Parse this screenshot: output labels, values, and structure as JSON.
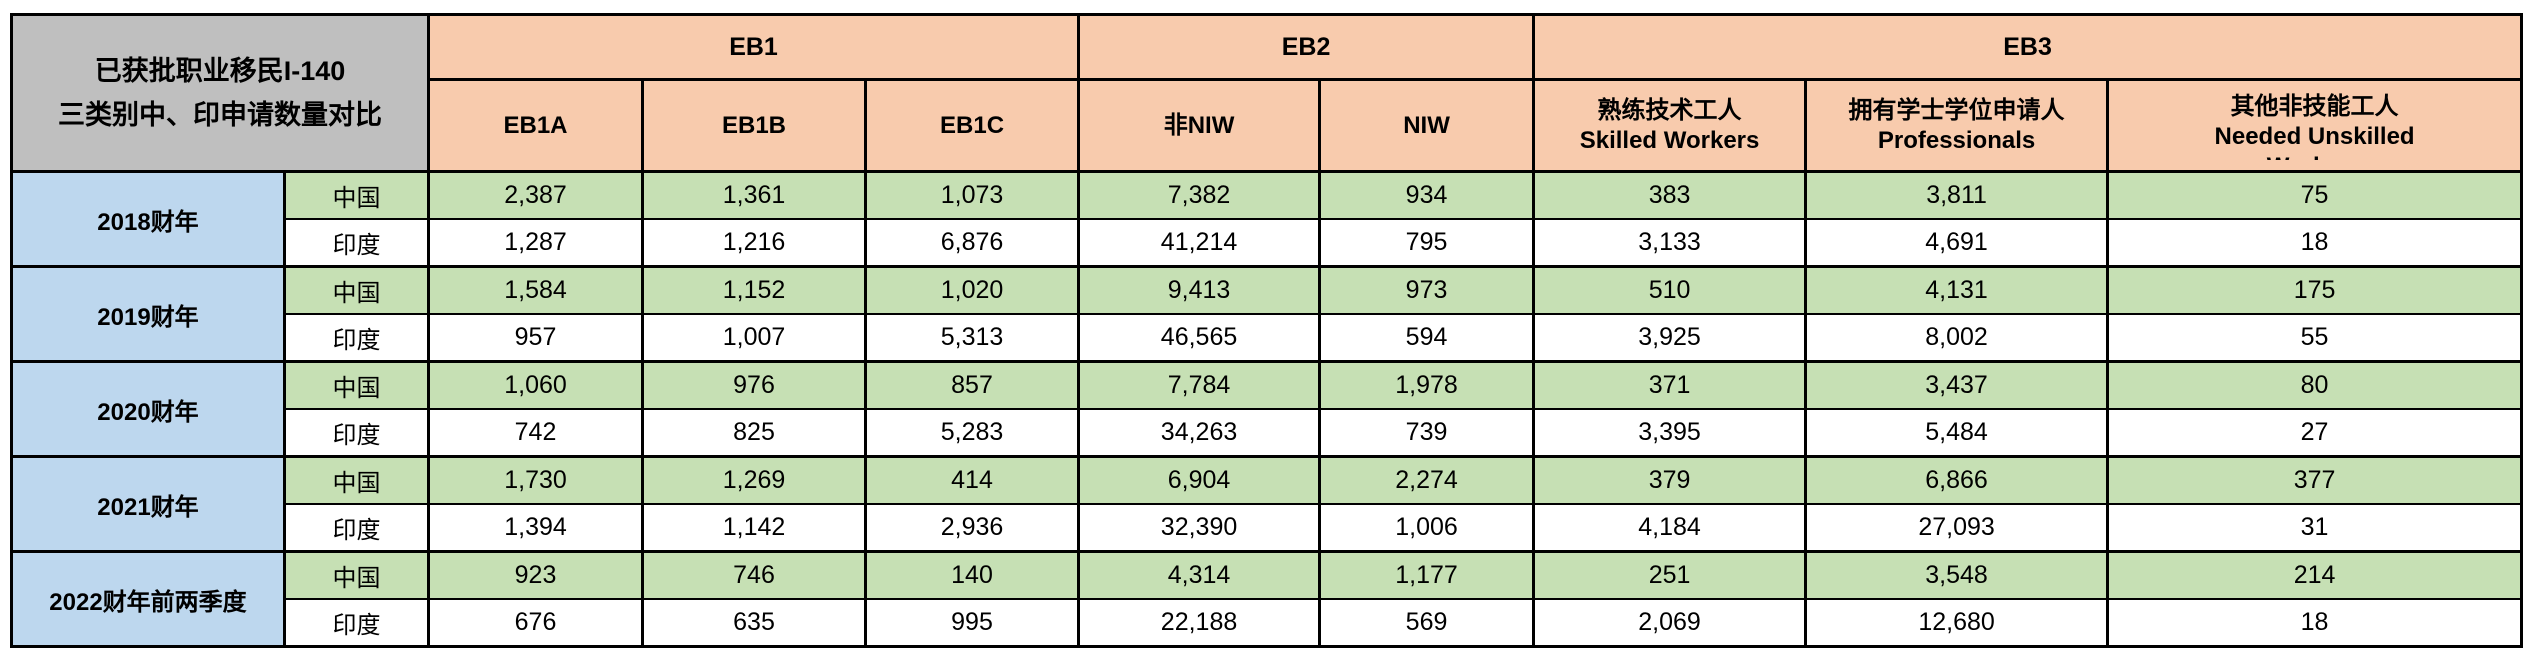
{
  "colors": {
    "header_bg": "#F8CBAD",
    "corner_bg": "#BFBFBF",
    "year_bg": "#BDD7EE",
    "china_bg": "#C6E0B4",
    "india_bg": "#FFFFFF",
    "border": "#000000"
  },
  "table": {
    "title_line1": "已获批职业移民I-140",
    "title_line2": "三类别中、印申请数量对比",
    "groups": [
      {
        "label": "EB1",
        "span": 3
      },
      {
        "label": "EB2",
        "span": 2
      },
      {
        "label": "EB3",
        "span": 3
      }
    ],
    "columns": [
      {
        "id": "eb1a",
        "lines": [
          "EB1A"
        ]
      },
      {
        "id": "eb1b",
        "lines": [
          "EB1B"
        ]
      },
      {
        "id": "eb1c",
        "lines": [
          "EB1C"
        ]
      },
      {
        "id": "non-niw",
        "lines": [
          "非NIW"
        ]
      },
      {
        "id": "niw",
        "lines": [
          "NIW"
        ]
      },
      {
        "id": "skilled-workers",
        "lines": [
          "熟练技术工人",
          "Skilled Workers"
        ]
      },
      {
        "id": "professionals",
        "lines": [
          "拥有学士学位申请人",
          "Professionals"
        ]
      },
      {
        "id": "unskilled-workers",
        "lines": [
          "其他非技能工人",
          "Needed Unskilled",
          "Workers"
        ]
      }
    ],
    "year_groups": [
      {
        "year": "2018财年",
        "rows": [
          {
            "country": "中国",
            "values": [
              "2,387",
              "1,361",
              "1,073",
              "7,382",
              "934",
              "383",
              "3,811",
              "75"
            ]
          },
          {
            "country": "印度",
            "values": [
              "1,287",
              "1,216",
              "6,876",
              "41,214",
              "795",
              "3,133",
              "4,691",
              "18"
            ]
          }
        ]
      },
      {
        "year": "2019财年",
        "rows": [
          {
            "country": "中国",
            "values": [
              "1,584",
              "1,152",
              "1,020",
              "9,413",
              "973",
              "510",
              "4,131",
              "175"
            ]
          },
          {
            "country": "印度",
            "values": [
              "957",
              "1,007",
              "5,313",
              "46,565",
              "594",
              "3,925",
              "8,002",
              "55"
            ]
          }
        ]
      },
      {
        "year": "2020财年",
        "rows": [
          {
            "country": "中国",
            "values": [
              "1,060",
              "976",
              "857",
              "7,784",
              "1,978",
              "371",
              "3,437",
              "80"
            ]
          },
          {
            "country": "印度",
            "values": [
              "742",
              "825",
              "5,283",
              "34,263",
              "739",
              "3,395",
              "5,484",
              "27"
            ]
          }
        ]
      },
      {
        "year": "2021财年",
        "rows": [
          {
            "country": "中国",
            "values": [
              "1,730",
              "1,269",
              "414",
              "6,904",
              "2,274",
              "379",
              "6,866",
              "377"
            ]
          },
          {
            "country": "印度",
            "values": [
              "1,394",
              "1,142",
              "2,936",
              "32,390",
              "1,006",
              "4,184",
              "27,093",
              "31"
            ]
          }
        ]
      },
      {
        "year": "2022财年前两季度",
        "rows": [
          {
            "country": "中国",
            "values": [
              "923",
              "746",
              "140",
              "4,314",
              "1,177",
              "251",
              "3,548",
              "214"
            ]
          },
          {
            "country": "印度",
            "values": [
              "676",
              "635",
              "995",
              "22,188",
              "569",
              "2,069",
              "12,680",
              "18"
            ]
          }
        ]
      }
    ]
  },
  "chart_data": {
    "type": "table",
    "title": "已获批职业移民I-140 三类别中、印申请数量对比",
    "column_groups": [
      {
        "label": "EB1",
        "columns": [
          "EB1A",
          "EB1B",
          "EB1C"
        ]
      },
      {
        "label": "EB2",
        "columns": [
          "非NIW",
          "NIW"
        ]
      },
      {
        "label": "EB3",
        "columns": [
          "熟练技术工人 Skilled Workers",
          "拥有学士学位申请人 Professionals",
          "其他非技能工人 Needed Unskilled Workers"
        ]
      }
    ],
    "rows": [
      {
        "fiscal_year": "2018财年",
        "country": "中国",
        "values": [
          2387,
          1361,
          1073,
          7382,
          934,
          383,
          3811,
          75
        ]
      },
      {
        "fiscal_year": "2018财年",
        "country": "印度",
        "values": [
          1287,
          1216,
          6876,
          41214,
          795,
          3133,
          4691,
          18
        ]
      },
      {
        "fiscal_year": "2019财年",
        "country": "中国",
        "values": [
          1584,
          1152,
          1020,
          9413,
          973,
          510,
          4131,
          175
        ]
      },
      {
        "fiscal_year": "2019财年",
        "country": "印度",
        "values": [
          957,
          1007,
          5313,
          46565,
          594,
          3925,
          8002,
          55
        ]
      },
      {
        "fiscal_year": "2020财年",
        "country": "中国",
        "values": [
          1060,
          976,
          857,
          7784,
          1978,
          371,
          3437,
          80
        ]
      },
      {
        "fiscal_year": "2020财年",
        "country": "印度",
        "values": [
          742,
          825,
          5283,
          34263,
          739,
          3395,
          5484,
          27
        ]
      },
      {
        "fiscal_year": "2021财年",
        "country": "中国",
        "values": [
          1730,
          1269,
          414,
          6904,
          2274,
          379,
          6866,
          377
        ]
      },
      {
        "fiscal_year": "2021财年",
        "country": "印度",
        "values": [
          1394,
          1142,
          2936,
          32390,
          1006,
          4184,
          27093,
          31
        ]
      },
      {
        "fiscal_year": "2022财年前两季度",
        "country": "中国",
        "values": [
          923,
          746,
          140,
          4314,
          1177,
          251,
          3548,
          214
        ]
      },
      {
        "fiscal_year": "2022财年前两季度",
        "country": "印度",
        "values": [
          676,
          635,
          995,
          22188,
          569,
          2069,
          12680,
          18
        ]
      }
    ]
  }
}
